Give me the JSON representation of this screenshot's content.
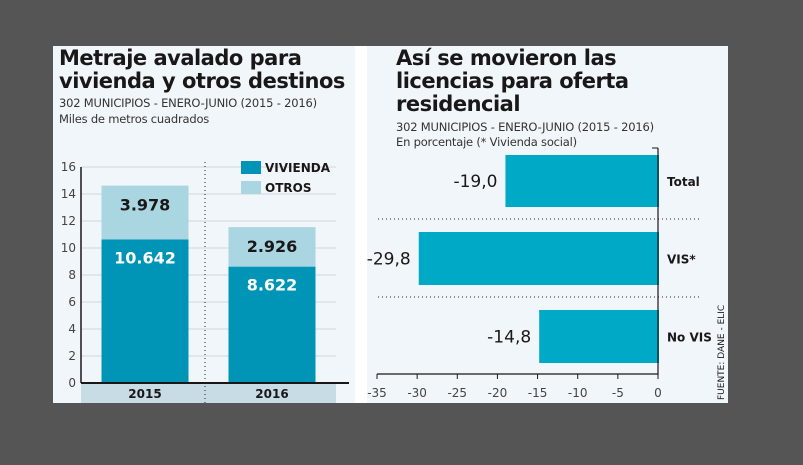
{
  "colors": {
    "vivienda": "#0095b6",
    "otros": "#a9d6e0",
    "licencias": "#00a9c6",
    "year_band": "#c8dce6",
    "text": "#1a1718"
  },
  "left": {
    "title_line1": "Metraje avalado para",
    "title_line2": "vivienda y otros destinos",
    "subtitle": "302 MUNICIPIOS - ENERO-JUNIO (2015 - 2016)",
    "unit": "Miles de metros cuadrados"
  },
  "right": {
    "title_line1": "Así se movieron las",
    "title_line2": "licencias para oferta",
    "title_line3": "residencial",
    "subtitle": "302 MUNICIPIOS - ENERO-JUNIO (2015 - 2016)",
    "unit": "En porcentaje (* Vivienda social)",
    "source": "FUENTE: DANE - ELIC"
  },
  "chart_data": [
    {
      "type": "bar",
      "stacked": true,
      "title": "Metraje avalado para vivienda y otros destinos",
      "subtitle": "302 MUNICIPIOS - ENERO-JUNIO (2015 - 2016)",
      "ylabel": "Miles de metros cuadrados",
      "categories": [
        "2015",
        "2016"
      ],
      "series": [
        {
          "name": "VIVIENDA",
          "values": [
            10.642,
            8.622
          ],
          "labels": [
            "10.642",
            "8.622"
          ]
        },
        {
          "name": "OTROS",
          "values": [
            3.978,
            2.926
          ],
          "labels": [
            "3.978",
            "2.926"
          ]
        }
      ],
      "ylim": [
        0,
        16
      ],
      "yticks": [
        "0",
        "2",
        "4",
        "6",
        "8",
        "10",
        "12",
        "14",
        "16"
      ],
      "grid": true,
      "legend": "top-right"
    },
    {
      "type": "bar",
      "orientation": "horizontal",
      "title": "Así se movieron las licencias para oferta residencial",
      "subtitle": "302 MUNICIPIOS - ENERO-JUNIO (2015 - 2016)",
      "xlabel": "En porcentaje (* Vivienda social)",
      "categories": [
        "Total",
        "VIS*",
        "No VIS"
      ],
      "values": [
        -19.0,
        -29.8,
        -14.8
      ],
      "labels": [
        "-19,0",
        "-29,8",
        "-14,8"
      ],
      "xlim": [
        -35,
        0
      ],
      "xticks": [
        "-35",
        "-30",
        "-25",
        "-20",
        "-15",
        "-10",
        "-5",
        "0"
      ],
      "grid": false,
      "legend": "none"
    }
  ]
}
